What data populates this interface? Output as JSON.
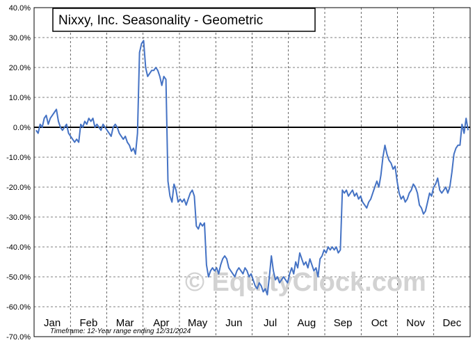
{
  "chart_data": {
    "type": "line",
    "title": "Nixxy, Inc. Seasonality - Geometric",
    "footnote": "Timeframe: 12-Year range ending 12/31/2024",
    "watermark": "© EquityClock.com",
    "xlabel": "",
    "ylabel": "",
    "ylim": [
      -70,
      40
    ],
    "yticks": [
      40,
      30,
      20,
      10,
      0,
      -10,
      -20,
      -30,
      -40,
      -50,
      -60,
      -70
    ],
    "ytick_labels": [
      "40.0%",
      "30.0%",
      "20.0%",
      "10.0%",
      "0.0%",
      "-10.0%",
      "-20.0%",
      "-30.0%",
      "-40.0%",
      "-50.0%",
      "-60.0%",
      "-70.0%"
    ],
    "months": [
      "Jan",
      "Feb",
      "Mar",
      "Apr",
      "May",
      "Jun",
      "Jul",
      "Aug",
      "Sep",
      "Oct",
      "Nov",
      "Dec"
    ],
    "grid": true,
    "line_color": "#4472c4",
    "zero_line_color": "#000000",
    "series": [
      {
        "values": [
          [
            1,
            -1
          ],
          [
            2,
            -2
          ],
          [
            3,
            1
          ],
          [
            4,
            0
          ],
          [
            5,
            3
          ],
          [
            6,
            4
          ],
          [
            7,
            1
          ],
          [
            8,
            3
          ],
          [
            10,
            5
          ],
          [
            11,
            6
          ],
          [
            12,
            2
          ],
          [
            13,
            0
          ],
          [
            14,
            -1
          ],
          [
            15,
            0
          ],
          [
            16,
            1
          ],
          [
            17,
            -2
          ],
          [
            18,
            -3
          ],
          [
            19,
            -4
          ],
          [
            20,
            -5
          ],
          [
            21,
            -4
          ],
          [
            22,
            -5
          ],
          [
            23,
            1
          ],
          [
            24,
            0
          ],
          [
            25,
            2
          ],
          [
            26,
            1
          ],
          [
            27,
            3
          ],
          [
            28,
            2
          ],
          [
            29,
            3
          ],
          [
            30,
            0
          ],
          [
            31,
            1
          ],
          [
            32,
            0
          ],
          [
            33,
            -1
          ],
          [
            34,
            1
          ],
          [
            35,
            0
          ],
          [
            36,
            -1
          ],
          [
            37,
            -2
          ],
          [
            38,
            -3
          ],
          [
            39,
            0
          ],
          [
            40,
            1
          ],
          [
            41,
            0
          ],
          [
            42,
            -2
          ],
          [
            43,
            -3
          ],
          [
            44,
            -4
          ],
          [
            45,
            -3
          ],
          [
            46,
            -5
          ],
          [
            47,
            -6
          ],
          [
            48,
            -8
          ],
          [
            49,
            -7
          ],
          [
            50,
            -9
          ],
          [
            51,
            -2
          ],
          [
            52,
            25
          ],
          [
            53,
            28
          ],
          [
            54,
            29
          ],
          [
            55,
            20
          ],
          [
            56,
            17
          ],
          [
            57,
            18
          ],
          [
            58,
            19
          ],
          [
            59,
            19
          ],
          [
            60,
            20
          ],
          [
            61,
            19
          ],
          [
            62,
            17
          ],
          [
            63,
            14
          ],
          [
            64,
            17
          ],
          [
            65,
            16
          ],
          [
            66,
            -18
          ],
          [
            67,
            -23
          ],
          [
            68,
            -25
          ],
          [
            69,
            -19
          ],
          [
            70,
            -21
          ],
          [
            71,
            -25
          ],
          [
            72,
            -24
          ],
          [
            73,
            -25
          ],
          [
            74,
            -24
          ],
          [
            75,
            -26
          ],
          [
            76,
            -24
          ],
          [
            77,
            -22
          ],
          [
            78,
            -21
          ],
          [
            79,
            -23
          ],
          [
            80,
            -33
          ],
          [
            81,
            -34
          ],
          [
            82,
            -32
          ],
          [
            83,
            -33
          ],
          [
            84,
            -32
          ],
          [
            85,
            -46
          ],
          [
            86,
            -50
          ],
          [
            87,
            -48
          ],
          [
            88,
            -47
          ],
          [
            89,
            -48
          ],
          [
            90,
            -47
          ],
          [
            91,
            -49
          ],
          [
            92,
            -46
          ],
          [
            93,
            -44
          ],
          [
            94,
            -43
          ],
          [
            95,
            -44
          ],
          [
            96,
            -47
          ],
          [
            97,
            -48
          ],
          [
            98,
            -49
          ],
          [
            99,
            -50
          ],
          [
            100,
            -48
          ],
          [
            101,
            -47
          ],
          [
            102,
            -48
          ],
          [
            103,
            -49
          ],
          [
            104,
            -47
          ],
          [
            105,
            -48
          ],
          [
            106,
            -50
          ],
          [
            107,
            -49
          ],
          [
            108,
            -51
          ],
          [
            109,
            -53
          ],
          [
            110,
            -54
          ],
          [
            111,
            -52
          ],
          [
            112,
            -53
          ],
          [
            113,
            -55
          ],
          [
            114,
            -54
          ],
          [
            115,
            -56
          ],
          [
            116,
            -50
          ],
          [
            117,
            -43
          ],
          [
            118,
            -48
          ],
          [
            119,
            -51
          ],
          [
            120,
            -50
          ],
          [
            121,
            -52
          ],
          [
            122,
            -51
          ],
          [
            123,
            -50
          ],
          [
            124,
            -51
          ],
          [
            125,
            -52
          ],
          [
            126,
            -49
          ],
          [
            127,
            -47
          ],
          [
            128,
            -49
          ],
          [
            129,
            -45
          ],
          [
            130,
            -47
          ],
          [
            131,
            -42
          ],
          [
            132,
            -44
          ],
          [
            133,
            -46
          ],
          [
            134,
            -45
          ],
          [
            135,
            -47
          ],
          [
            136,
            -44
          ],
          [
            137,
            -46
          ],
          [
            138,
            -48
          ],
          [
            139,
            -47
          ],
          [
            140,
            -50
          ],
          [
            141,
            -44
          ],
          [
            142,
            -43
          ],
          [
            143,
            -41
          ],
          [
            144,
            -42
          ],
          [
            145,
            -40
          ],
          [
            146,
            -41
          ],
          [
            147,
            -40
          ],
          [
            148,
            -41
          ],
          [
            149,
            -40
          ],
          [
            150,
            -42
          ],
          [
            151,
            -41
          ],
          [
            152,
            -21
          ],
          [
            153,
            -22
          ],
          [
            154,
            -21
          ],
          [
            155,
            -23
          ],
          [
            156,
            -22
          ],
          [
            157,
            -21
          ],
          [
            158,
            -23
          ],
          [
            159,
            -22
          ],
          [
            160,
            -24
          ],
          [
            161,
            -23
          ],
          [
            162,
            -25
          ],
          [
            163,
            -26
          ],
          [
            164,
            -27
          ],
          [
            165,
            -25
          ],
          [
            166,
            -24
          ],
          [
            167,
            -22
          ],
          [
            168,
            -20
          ],
          [
            169,
            -18
          ],
          [
            170,
            -20
          ],
          [
            171,
            -16
          ],
          [
            172,
            -10
          ],
          [
            173,
            -6
          ],
          [
            174,
            -9
          ],
          [
            175,
            -11
          ],
          [
            176,
            -12
          ],
          [
            177,
            -14
          ],
          [
            178,
            -13
          ],
          [
            179,
            -18
          ],
          [
            180,
            -22
          ],
          [
            181,
            -24
          ],
          [
            182,
            -23
          ],
          [
            183,
            -25
          ],
          [
            184,
            -24
          ],
          [
            185,
            -22
          ],
          [
            186,
            -21
          ],
          [
            187,
            -19
          ],
          [
            188,
            -20
          ],
          [
            189,
            -22
          ],
          [
            190,
            -26
          ],
          [
            191,
            -27
          ],
          [
            192,
            -29
          ],
          [
            193,
            -28
          ],
          [
            194,
            -25
          ],
          [
            195,
            -22
          ],
          [
            196,
            -23
          ],
          [
            197,
            -20
          ],
          [
            198,
            -19
          ],
          [
            199,
            -17
          ],
          [
            200,
            -21
          ],
          [
            201,
            -22
          ],
          [
            202,
            -21
          ],
          [
            203,
            -20
          ],
          [
            204,
            -22
          ],
          [
            205,
            -20
          ],
          [
            206,
            -15
          ],
          [
            207,
            -9
          ],
          [
            208,
            -7
          ],
          [
            209,
            -6
          ],
          [
            210,
            -6
          ],
          [
            211,
            1
          ],
          [
            212,
            -2
          ],
          [
            213,
            3
          ],
          [
            214,
            -1
          ]
        ]
      }
    ]
  }
}
